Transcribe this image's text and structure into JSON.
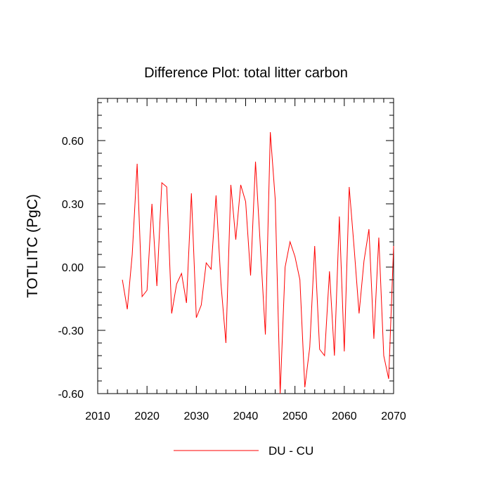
{
  "chart_data": {
    "type": "line",
    "title": "Difference Plot: total litter carbon",
    "xlabel": "",
    "ylabel": "TOTLITC  (PgC)",
    "xlim": [
      2010,
      2070
    ],
    "ylim": [
      -0.6,
      0.8
    ],
    "x_ticks": [
      2010,
      2020,
      2030,
      2040,
      2050,
      2060,
      2070
    ],
    "x_tick_labels": [
      "2010",
      "2020",
      "2030",
      "2040",
      "2050",
      "2060",
      "2070"
    ],
    "y_ticks": [
      -0.6,
      -0.3,
      0.0,
      0.3,
      0.6
    ],
    "y_tick_labels": [
      "-0.60",
      "-0.30",
      "0.00",
      "0.30",
      "0.60"
    ],
    "legend": "bottom-center",
    "grid": false,
    "series": [
      {
        "name": "DU - CU",
        "color": "#ff0000",
        "x": [
          2015,
          2016,
          2017,
          2018,
          2019,
          2020,
          2021,
          2022,
          2023,
          2024,
          2025,
          2026,
          2027,
          2028,
          2029,
          2030,
          2031,
          2032,
          2033,
          2034,
          2035,
          2036,
          2037,
          2038,
          2039,
          2040,
          2041,
          2042,
          2043,
          2044,
          2045,
          2046,
          2047,
          2048,
          2049,
          2050,
          2051,
          2052,
          2053,
          2054,
          2055,
          2056,
          2057,
          2058,
          2059,
          2060,
          2061,
          2062,
          2063,
          2064,
          2065,
          2066,
          2067,
          2068,
          2069,
          2070
        ],
        "values": [
          -0.06,
          -0.2,
          0.06,
          0.49,
          -0.14,
          -0.11,
          0.3,
          -0.09,
          0.4,
          0.38,
          -0.22,
          -0.08,
          -0.03,
          -0.17,
          0.35,
          -0.24,
          -0.18,
          0.02,
          -0.01,
          0.34,
          -0.08,
          -0.36,
          0.39,
          0.13,
          0.39,
          0.31,
          -0.04,
          0.5,
          0.09,
          -0.32,
          0.64,
          0.32,
          -0.6,
          0.0,
          0.12,
          0.05,
          -0.06,
          -0.57,
          -0.38,
          0.1,
          -0.39,
          -0.42,
          -0.02,
          -0.42,
          0.24,
          -0.4,
          0.38,
          0.09,
          -0.22,
          0.03,
          0.18,
          -0.34,
          0.14,
          -0.42,
          -0.53,
          0.1
        ]
      }
    ]
  }
}
